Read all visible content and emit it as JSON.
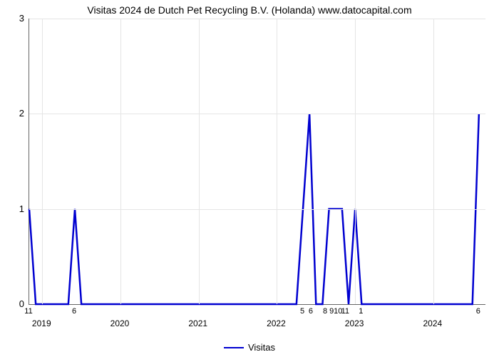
{
  "chart": {
    "type": "line",
    "title": "Visitas 2024 de Dutch Pet Recycling B.V. (Holanda) www.datocapital.com",
    "title_fontsize": 14,
    "background_color": "#ffffff",
    "grid_color": "#e5e5e5",
    "axis_color": "#666666",
    "line_color": "#0000d0",
    "line_width": 2.5,
    "xlim": [
      0,
      70
    ],
    "ylim": [
      0,
      3
    ],
    "yticks": [
      0,
      1,
      2,
      3
    ],
    "xticks_major": [
      {
        "x": 2,
        "label": "2019"
      },
      {
        "x": 14,
        "label": "2020"
      },
      {
        "x": 26,
        "label": "2021"
      },
      {
        "x": 38,
        "label": "2022"
      },
      {
        "x": 50,
        "label": "2023"
      },
      {
        "x": 62,
        "label": "2024"
      }
    ],
    "xticks_minor": [
      {
        "x": 0,
        "label": "11"
      },
      {
        "x": 7,
        "label": "6"
      },
      {
        "x": 42,
        "label": "5"
      },
      {
        "x": 43.3,
        "label": "6"
      },
      {
        "x": 45.5,
        "label": "8"
      },
      {
        "x": 46.5,
        "label": "9"
      },
      {
        "x": 47.5,
        "label": "10"
      },
      {
        "x": 48.6,
        "label": "11"
      },
      {
        "x": 51,
        "label": "1"
      },
      {
        "x": 69,
        "label": "6"
      }
    ],
    "points": [
      {
        "x": 0,
        "y": 1
      },
      {
        "x": 1,
        "y": 0
      },
      {
        "x": 6,
        "y": 0
      },
      {
        "x": 7,
        "y": 1
      },
      {
        "x": 8,
        "y": 0
      },
      {
        "x": 41,
        "y": 0
      },
      {
        "x": 42,
        "y": 1
      },
      {
        "x": 43,
        "y": 2
      },
      {
        "x": 44,
        "y": 0
      },
      {
        "x": 45,
        "y": 0
      },
      {
        "x": 46,
        "y": 1
      },
      {
        "x": 47,
        "y": 1
      },
      {
        "x": 48,
        "y": 1
      },
      {
        "x": 49,
        "y": 0
      },
      {
        "x": 50,
        "y": 1
      },
      {
        "x": 51,
        "y": 0
      },
      {
        "x": 68,
        "y": 0
      },
      {
        "x": 69,
        "y": 2
      }
    ],
    "legend_label": "Visitas"
  }
}
